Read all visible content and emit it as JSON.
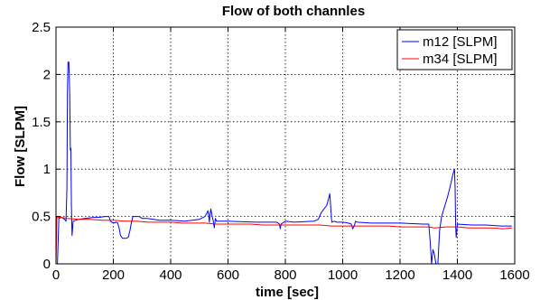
{
  "chart_data": {
    "type": "line",
    "title": "Flow of both channles",
    "xlabel": "time [sec]",
    "ylabel": "Flow [SLPM]",
    "xlim": [
      0,
      1600
    ],
    "ylim": [
      0,
      2.5
    ],
    "xticks": [
      0,
      200,
      400,
      600,
      800,
      1000,
      1200,
      1400,
      1600
    ],
    "yticks": [
      0,
      0.5,
      1,
      1.5,
      2,
      2.5
    ],
    "xtick_labels": [
      "0",
      "200",
      "400",
      "600",
      "800",
      "1000",
      "1200",
      "1400",
      "1600"
    ],
    "ytick_labels": [
      "0",
      "0.5",
      "1",
      "1.5",
      "2",
      "2.5"
    ],
    "grid": true,
    "legend_position": "top-right",
    "series": [
      {
        "name": "m12 [SLPM]",
        "color": "#0000ff",
        "points": [
          [
            0,
            0
          ],
          [
            5,
            0
          ],
          [
            10,
            0.48
          ],
          [
            20,
            0.49
          ],
          [
            30,
            0.47
          ],
          [
            35,
            0.45
          ],
          [
            38,
            0.8
          ],
          [
            40,
            1.8
          ],
          [
            42,
            2.13
          ],
          [
            45,
            2.13
          ],
          [
            48,
            1.8
          ],
          [
            50,
            1.2
          ],
          [
            52,
            1.22
          ],
          [
            54,
            0.6
          ],
          [
            56,
            0.3
          ],
          [
            60,
            0.45
          ],
          [
            80,
            0.47
          ],
          [
            100,
            0.48
          ],
          [
            130,
            0.49
          ],
          [
            150,
            0.49
          ],
          [
            170,
            0.5
          ],
          [
            185,
            0.5
          ],
          [
            190,
            0.45
          ],
          [
            200,
            0.43
          ],
          [
            210,
            0.44
          ],
          [
            215,
            0.43
          ],
          [
            220,
            0.38
          ],
          [
            225,
            0.3
          ],
          [
            232,
            0.27
          ],
          [
            245,
            0.27
          ],
          [
            252,
            0.28
          ],
          [
            258,
            0.35
          ],
          [
            262,
            0.42
          ],
          [
            268,
            0.5
          ],
          [
            290,
            0.5
          ],
          [
            300,
            0.48
          ],
          [
            320,
            0.48
          ],
          [
            340,
            0.47
          ],
          [
            360,
            0.46
          ],
          [
            400,
            0.46
          ],
          [
            450,
            0.45
          ],
          [
            500,
            0.47
          ],
          [
            520,
            0.5
          ],
          [
            530,
            0.56
          ],
          [
            533,
            0.5
          ],
          [
            535,
            0.44
          ],
          [
            537,
            0.52
          ],
          [
            540,
            0.58
          ],
          [
            545,
            0.5
          ],
          [
            548,
            0.46
          ],
          [
            552,
            0.38
          ],
          [
            556,
            0.48
          ],
          [
            560,
            0.45
          ],
          [
            600,
            0.45
          ],
          [
            700,
            0.44
          ],
          [
            770,
            0.44
          ],
          [
            780,
            0.42
          ],
          [
            782,
            0.37
          ],
          [
            785,
            0.42
          ],
          [
            800,
            0.45
          ],
          [
            830,
            0.44
          ],
          [
            900,
            0.45
          ],
          [
            915,
            0.47
          ],
          [
            925,
            0.54
          ],
          [
            935,
            0.58
          ],
          [
            945,
            0.62
          ],
          [
            950,
            0.68
          ],
          [
            955,
            0.74
          ],
          [
            958,
            0.6
          ],
          [
            962,
            0.44
          ],
          [
            970,
            0.45
          ],
          [
            980,
            0.44
          ],
          [
            1000,
            0.44
          ],
          [
            1020,
            0.43
          ],
          [
            1030,
            0.42
          ],
          [
            1035,
            0.37
          ],
          [
            1040,
            0.4
          ],
          [
            1045,
            0.45
          ],
          [
            1050,
            0.44
          ],
          [
            1100,
            0.43
          ],
          [
            1200,
            0.43
          ],
          [
            1280,
            0.42
          ],
          [
            1300,
            0.42
          ],
          [
            1305,
            0.25
          ],
          [
            1310,
            0.0
          ],
          [
            1315,
            0.15
          ],
          [
            1320,
            0.1
          ],
          [
            1325,
            0.0
          ],
          [
            1332,
            0.0
          ],
          [
            1338,
            0.35
          ],
          [
            1345,
            0.5
          ],
          [
            1355,
            0.6
          ],
          [
            1365,
            0.7
          ],
          [
            1375,
            0.82
          ],
          [
            1385,
            0.95
          ],
          [
            1390,
            1.0
          ],
          [
            1392,
            0.8
          ],
          [
            1394,
            0.4
          ],
          [
            1396,
            0.28
          ],
          [
            1400,
            0.42
          ],
          [
            1450,
            0.41
          ],
          [
            1500,
            0.41
          ],
          [
            1550,
            0.4
          ],
          [
            1590,
            0.4
          ]
        ]
      },
      {
        "name": "m34 [SLPM]",
        "color": "#ff0000",
        "points": [
          [
            0,
            0.0
          ],
          [
            3,
            0.49
          ],
          [
            20,
            0.49
          ],
          [
            40,
            0.48
          ],
          [
            80,
            0.47
          ],
          [
            120,
            0.47
          ],
          [
            160,
            0.46
          ],
          [
            200,
            0.46
          ],
          [
            240,
            0.45
          ],
          [
            280,
            0.45
          ],
          [
            320,
            0.44
          ],
          [
            360,
            0.44
          ],
          [
            400,
            0.44
          ],
          [
            440,
            0.43
          ],
          [
            480,
            0.43
          ],
          [
            520,
            0.43
          ],
          [
            560,
            0.42
          ],
          [
            600,
            0.42
          ],
          [
            640,
            0.42
          ],
          [
            680,
            0.42
          ],
          [
            720,
            0.41
          ],
          [
            760,
            0.41
          ],
          [
            800,
            0.41
          ],
          [
            840,
            0.41
          ],
          [
            880,
            0.41
          ],
          [
            920,
            0.41
          ],
          [
            960,
            0.4
          ],
          [
            1000,
            0.4
          ],
          [
            1040,
            0.4
          ],
          [
            1080,
            0.4
          ],
          [
            1120,
            0.4
          ],
          [
            1160,
            0.4
          ],
          [
            1200,
            0.39
          ],
          [
            1240,
            0.39
          ],
          [
            1280,
            0.39
          ],
          [
            1300,
            0.39
          ],
          [
            1320,
            0.38
          ],
          [
            1360,
            0.39
          ],
          [
            1400,
            0.39
          ],
          [
            1440,
            0.38
          ],
          [
            1480,
            0.38
          ],
          [
            1520,
            0.38
          ],
          [
            1560,
            0.37
          ],
          [
            1590,
            0.38
          ]
        ]
      }
    ]
  }
}
